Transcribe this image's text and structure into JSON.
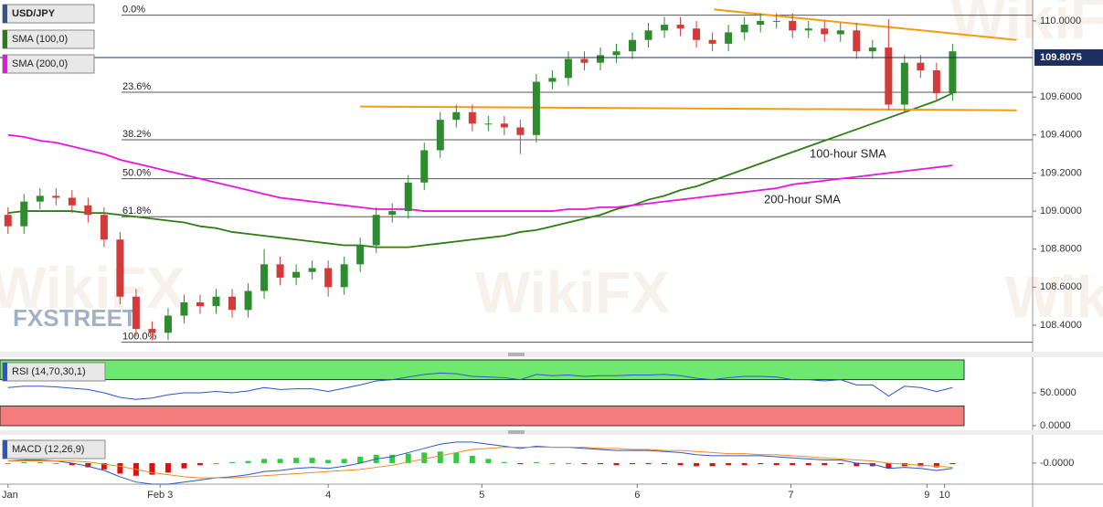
{
  "chart_data": {
    "type": "candlestick",
    "symbol": "USD/JPY",
    "symbol_color": "#2f5597",
    "up_color": "#2e8b2e",
    "down_color": "#d33a3a",
    "xlim": [
      -0.5,
      64
    ],
    "xticks": [
      {
        "value": 0,
        "label": "Jan"
      },
      {
        "value": 9.5,
        "label": "Feb 3"
      },
      {
        "value": 20,
        "label": "4"
      },
      {
        "value": 29.6,
        "label": "5"
      },
      {
        "value": 39.3,
        "label": "6"
      },
      {
        "value": 48.9,
        "label": "7"
      },
      {
        "value": 57.4,
        "label": "9"
      },
      {
        "value": 58.5,
        "label": "10"
      }
    ],
    "ylim": [
      108.27,
      110.11
    ],
    "yticks": [
      {
        "value": 110,
        "label": "110.0000"
      },
      {
        "value": 109.6,
        "label": "109.6000"
      },
      {
        "value": 109.4,
        "label": "109.4000"
      },
      {
        "value": 109.2,
        "label": "109.2000"
      },
      {
        "value": 109,
        "label": "109.0000"
      },
      {
        "value": 108.8,
        "label": "108.8000"
      },
      {
        "value": 108.6,
        "label": "108.6000"
      },
      {
        "value": 108.4,
        "label": "108.4000"
      }
    ],
    "open": [
      108.98,
      108.92,
      109.05,
      109.08,
      109.07,
      109.03,
      108.98,
      108.85,
      108.55,
      108.38,
      108.36,
      108.45,
      108.52,
      108.5,
      108.55,
      108.48,
      108.58,
      108.72,
      108.65,
      108.68,
      108.7,
      108.6,
      108.72,
      108.82,
      108.98,
      109.0,
      109.15,
      109.32,
      109.48,
      109.52,
      109.46,
      109.46,
      109.44,
      109.4,
      109.68,
      109.7,
      109.8,
      109.78,
      109.82,
      109.84,
      109.9,
      109.95,
      109.98,
      109.96,
      109.9,
      109.88,
      109.94,
      109.98,
      110.0,
      110.0,
      109.95,
      109.96,
      109.93,
      109.95,
      109.84,
      109.86,
      109.56,
      109.78,
      109.74,
      109.62
    ],
    "high": [
      109.02,
      109.09,
      109.12,
      109.12,
      109.11,
      109.07,
      109.02,
      108.89,
      108.59,
      108.42,
      108.49,
      108.56,
      108.56,
      108.59,
      108.59,
      108.62,
      108.8,
      108.76,
      108.72,
      108.74,
      108.74,
      108.76,
      108.86,
      109.02,
      109.04,
      109.19,
      109.36,
      109.52,
      109.56,
      109.56,
      109.5,
      109.5,
      109.48,
      109.72,
      109.74,
      109.84,
      109.84,
      109.86,
      109.88,
      109.94,
      109.99,
      110.02,
      110.02,
      110.0,
      109.94,
      109.98,
      110.02,
      110.04,
      110.04,
      110.04,
      110.0,
      110.0,
      109.99,
      109.99,
      109.9,
      110.01,
      109.82,
      109.82,
      109.78,
      109.88
    ],
    "low": [
      108.88,
      108.88,
      109.01,
      109.03,
      108.99,
      108.94,
      108.81,
      108.51,
      108.34,
      108.32,
      108.32,
      108.41,
      108.46,
      108.46,
      108.44,
      108.44,
      108.54,
      108.61,
      108.61,
      108.64,
      108.55,
      108.56,
      108.68,
      108.78,
      108.94,
      108.96,
      109.11,
      109.28,
      109.44,
      109.42,
      109.42,
      109.4,
      109.3,
      109.36,
      109.64,
      109.66,
      109.74,
      109.74,
      109.78,
      109.8,
      109.86,
      109.91,
      109.92,
      109.86,
      109.84,
      109.84,
      109.9,
      109.94,
      109.96,
      109.91,
      109.91,
      109.89,
      109.89,
      109.8,
      109.8,
      109.53,
      109.52,
      109.7,
      109.58,
      109.58
    ],
    "close": [
      108.92,
      109.05,
      109.08,
      109.07,
      109.03,
      108.98,
      108.85,
      108.55,
      108.38,
      108.36,
      108.45,
      108.52,
      108.5,
      108.55,
      108.48,
      108.58,
      108.72,
      108.65,
      108.68,
      108.7,
      108.6,
      108.72,
      108.82,
      108.98,
      109.0,
      109.15,
      109.32,
      109.48,
      109.52,
      109.46,
      109.46,
      109.44,
      109.4,
      109.68,
      109.7,
      109.8,
      109.78,
      109.82,
      109.84,
      109.9,
      109.95,
      109.98,
      109.96,
      109.9,
      109.88,
      109.94,
      109.98,
      110.0,
      110.0,
      109.95,
      109.96,
      109.93,
      109.95,
      109.84,
      109.86,
      109.56,
      109.78,
      109.74,
      109.62,
      109.84
    ],
    "series": [
      {
        "name": "SMA (100,0)",
        "color": "#2f7d12",
        "annotation": "100-hour SMA",
        "values": [
          108.99,
          109.0,
          109.0,
          109.0,
          109.0,
          108.99,
          108.99,
          108.98,
          108.97,
          108.96,
          108.95,
          108.94,
          108.92,
          108.91,
          108.89,
          108.88,
          108.87,
          108.86,
          108.85,
          108.84,
          108.83,
          108.82,
          108.82,
          108.81,
          108.81,
          108.81,
          108.82,
          108.83,
          108.84,
          108.85,
          108.86,
          108.87,
          108.89,
          108.9,
          108.92,
          108.94,
          108.96,
          108.98,
          109.01,
          109.03,
          109.06,
          109.08,
          109.11,
          109.13,
          109.16,
          109.19,
          109.22,
          109.25,
          109.28,
          109.31,
          109.34,
          109.37,
          109.4,
          109.43,
          109.46,
          109.49,
          109.52,
          109.55,
          109.58,
          109.62
        ]
      },
      {
        "name": "SMA (200,0)",
        "color": "#e815e0",
        "annotation": "200-hour SMA",
        "values": [
          109.4,
          109.39,
          109.37,
          109.36,
          109.34,
          109.32,
          109.3,
          109.27,
          109.25,
          109.23,
          109.21,
          109.19,
          109.17,
          109.15,
          109.13,
          109.11,
          109.09,
          109.07,
          109.06,
          109.05,
          109.04,
          109.03,
          109.02,
          109.01,
          109.01,
          109.01,
          109.0,
          109.0,
          109.0,
          109.0,
          109.0,
          109.0,
          109.0,
          109.0,
          109.0,
          109.01,
          109.01,
          109.02,
          109.02,
          109.03,
          109.04,
          109.05,
          109.06,
          109.07,
          109.08,
          109.09,
          109.1,
          109.11,
          109.12,
          109.14,
          109.15,
          109.16,
          109.17,
          109.18,
          109.19,
          109.2,
          109.21,
          109.22,
          109.23,
          109.24
        ]
      }
    ],
    "fibonacci": [
      {
        "label": "0.0%",
        "value": 110.03
      },
      {
        "label": "23.6%",
        "value": 109.625
      },
      {
        "label": "38.2%",
        "value": 109.375
      },
      {
        "label": "50.0%",
        "value": 109.17
      },
      {
        "label": "61.8%",
        "value": 108.97
      },
      {
        "label": "100.0%",
        "value": 108.31
      }
    ],
    "trendlines": [
      {
        "color": "#f39c12",
        "x": [
          44.1,
          63
        ],
        "y": [
          110.06,
          109.9
        ]
      },
      {
        "color": "#f39c12",
        "x": [
          22,
          63
        ],
        "y": [
          109.55,
          109.53
        ]
      }
    ],
    "last_price": 109.8075,
    "rsi": {
      "label": "RSI (14,70,30,1)",
      "color": "#2a56c6",
      "ylim": [
        -5.6,
        101.4
      ],
      "yticks": [
        {
          "value": 50,
          "label": "50.0000"
        },
        {
          "value": 0,
          "label": "0.0000"
        }
      ],
      "overbought_zone": [
        70,
        100
      ],
      "oversold_zone": [
        0,
        30
      ],
      "overbought_color": "#6fe86f",
      "oversold_color": "#f47c7c",
      "values": [
        58,
        60,
        60,
        59,
        57,
        55,
        50,
        43,
        40,
        42,
        47,
        50,
        50,
        52,
        50,
        53,
        58,
        55,
        56,
        56,
        52,
        57,
        62,
        68,
        70,
        74,
        78,
        80,
        79,
        75,
        74,
        73,
        70,
        78,
        76,
        77,
        75,
        76,
        76,
        77,
        77,
        78,
        76,
        72,
        70,
        73,
        75,
        75,
        74,
        70,
        70,
        68,
        70,
        62,
        62,
        45,
        60,
        58,
        52,
        58
      ]
    },
    "macd": {
      "label": "MACD (12,26,9)",
      "ylim": [
        -0.2,
        0.26
      ],
      "yticks": [
        {
          "value": 0,
          "label": "-0.0000"
        }
      ],
      "macd_color": "#2a56c6",
      "signal_color": "#f08a24",
      "hist_up_color": "#2ecc40",
      "hist_down_color": "#e01010",
      "macd": [
        0.02,
        0.03,
        0.03,
        0.02,
        0.0,
        -0.03,
        -0.07,
        -0.13,
        -0.18,
        -0.2,
        -0.2,
        -0.18,
        -0.16,
        -0.14,
        -0.13,
        -0.11,
        -0.08,
        -0.07,
        -0.05,
        -0.04,
        -0.05,
        -0.03,
        0.0,
        0.04,
        0.06,
        0.1,
        0.14,
        0.18,
        0.2,
        0.2,
        0.18,
        0.16,
        0.14,
        0.16,
        0.15,
        0.15,
        0.14,
        0.13,
        0.12,
        0.12,
        0.12,
        0.11,
        0.1,
        0.08,
        0.07,
        0.07,
        0.07,
        0.07,
        0.06,
        0.05,
        0.04,
        0.03,
        0.03,
        0.0,
        -0.01,
        -0.05,
        -0.04,
        -0.05,
        -0.07,
        -0.05
      ],
      "signal": [
        0.02,
        0.02,
        0.02,
        0.02,
        0.02,
        0.01,
        -0.01,
        -0.03,
        -0.06,
        -0.09,
        -0.11,
        -0.13,
        -0.14,
        -0.14,
        -0.14,
        -0.13,
        -0.12,
        -0.11,
        -0.1,
        -0.09,
        -0.08,
        -0.07,
        -0.06,
        -0.04,
        -0.02,
        0.01,
        0.04,
        0.07,
        0.1,
        0.13,
        0.14,
        0.15,
        0.15,
        0.15,
        0.15,
        0.15,
        0.15,
        0.14,
        0.14,
        0.13,
        0.13,
        0.12,
        0.12,
        0.11,
        0.1,
        0.09,
        0.09,
        0.08,
        0.08,
        0.07,
        0.06,
        0.05,
        0.04,
        0.03,
        0.02,
        0.0,
        -0.01,
        -0.02,
        -0.03,
        -0.04
      ],
      "histogram": [
        0,
        0.01,
        0.01,
        0,
        -0.02,
        -0.04,
        -0.06,
        -0.1,
        -0.12,
        -0.11,
        -0.09,
        -0.05,
        -0.02,
        0,
        0.01,
        0.02,
        0.04,
        0.04,
        0.05,
        0.05,
        0.03,
        0.04,
        0.06,
        0.08,
        0.08,
        0.09,
        0.1,
        0.11,
        0.1,
        0.07,
        0.04,
        0.01,
        -0.01,
        0.01,
        0,
        0,
        -0.01,
        -0.01,
        -0.02,
        -0.01,
        -0.01,
        -0.01,
        -0.02,
        -0.03,
        -0.03,
        -0.02,
        -0.02,
        -0.01,
        -0.02,
        -0.02,
        -0.02,
        -0.02,
        -0.01,
        -0.03,
        -0.03,
        -0.05,
        -0.03,
        -0.03,
        -0.04,
        -0.01
      ]
    },
    "branding": {
      "fxstreet": "FXSTREET",
      "wikifx": "WikiFX"
    }
  }
}
